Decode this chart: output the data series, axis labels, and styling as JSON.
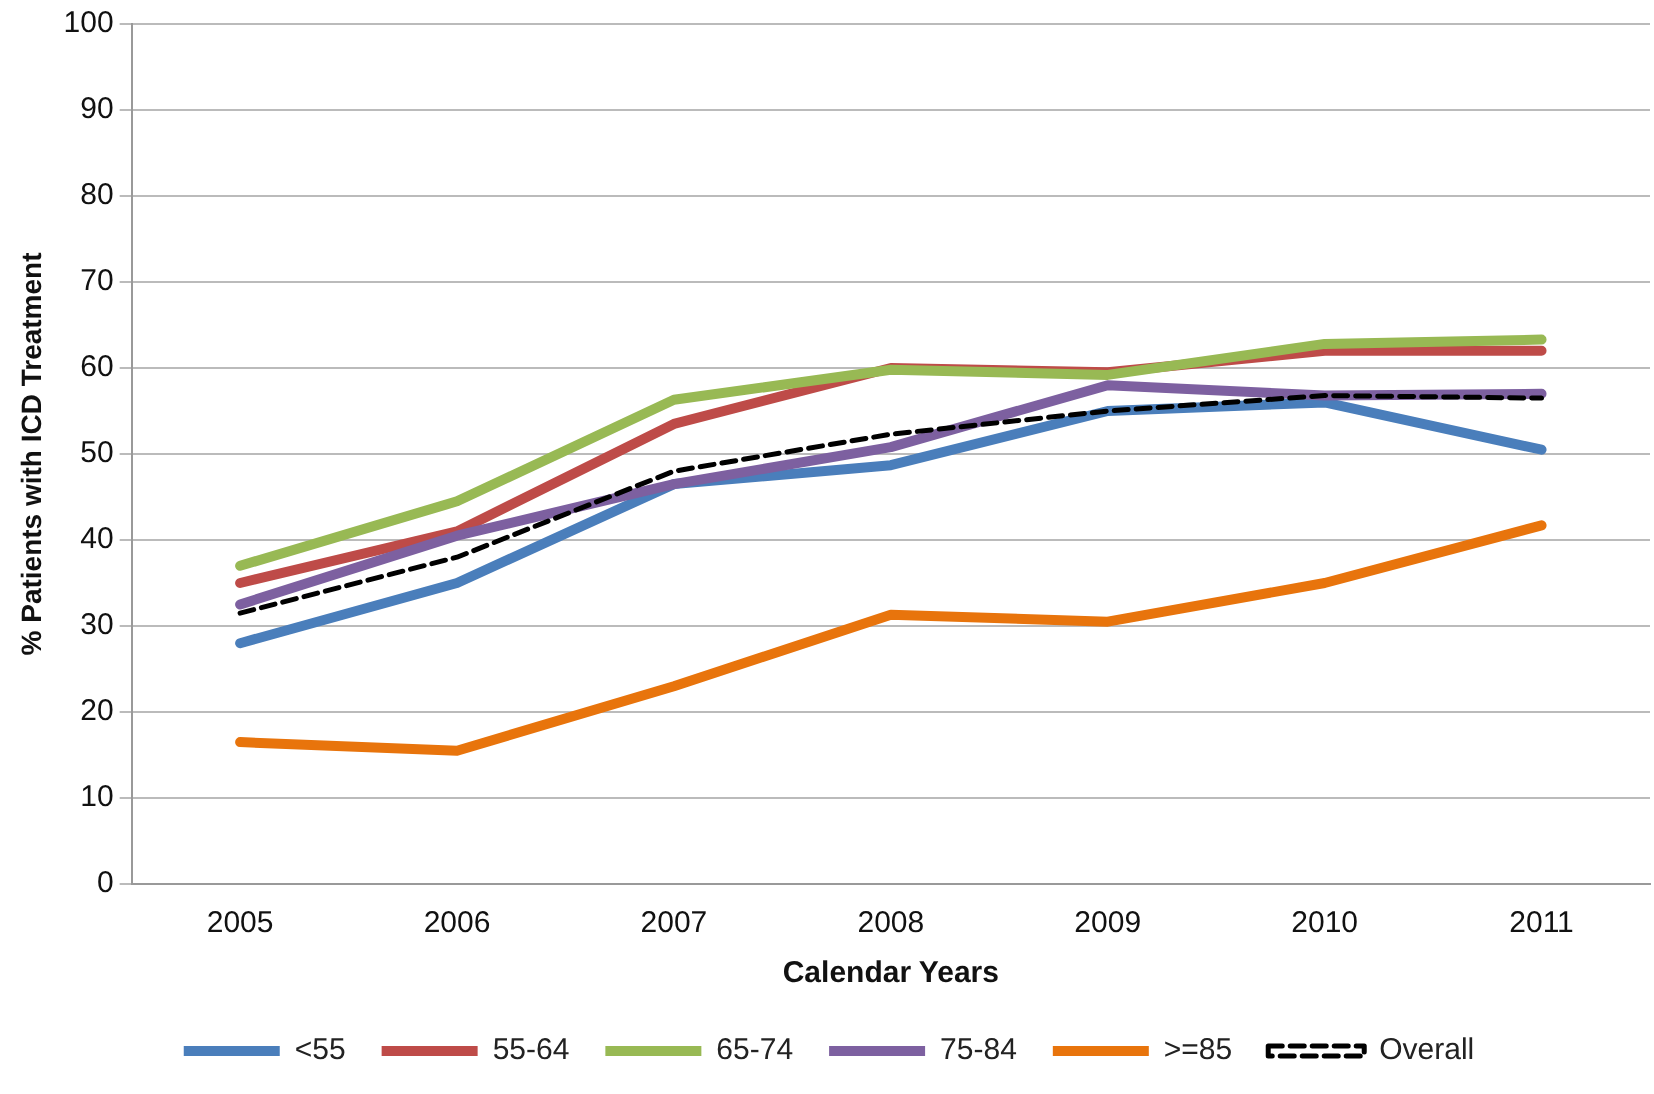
{
  "chart_data": {
    "type": "line",
    "xlabel": "Calendar Years",
    "ylabel": "% Patients with ICD Treatment",
    "categories": [
      "2005",
      "2006",
      "2007",
      "2008",
      "2009",
      "2010",
      "2011"
    ],
    "series": [
      {
        "name": "<55",
        "color": "#4a7ebb",
        "values": [
          28,
          35,
          46.5,
          48.7,
          55,
          56,
          50.5
        ]
      },
      {
        "name": "55-64",
        "color": "#be4b48",
        "values": [
          35,
          41,
          53.5,
          60,
          59.5,
          62,
          62
        ]
      },
      {
        "name": "65-74",
        "color": "#98b954",
        "values": [
          37,
          44.5,
          56.3,
          59.8,
          59.2,
          62.8,
          63.3
        ]
      },
      {
        "name": "75-84",
        "color": "#7d60a0",
        "values": [
          32.5,
          40.5,
          46.5,
          50.8,
          58,
          56.8,
          57
        ]
      },
      {
        "name": ">=85",
        "color": "#e8740c",
        "values": [
          16.5,
          15.5,
          23,
          31.3,
          30.5,
          35,
          41.7
        ]
      },
      {
        "name": "Overall",
        "color": "#000000",
        "line_style": "dashed",
        "values": [
          31.5,
          38,
          48,
          52.3,
          55,
          56.8,
          56.5
        ]
      }
    ],
    "ylim": [
      0,
      100
    ],
    "yticks": [
      0,
      10,
      20,
      30,
      40,
      50,
      60,
      70,
      80,
      90,
      100
    ],
    "grid": "y",
    "legend": "bottom",
    "marker": "none"
  }
}
